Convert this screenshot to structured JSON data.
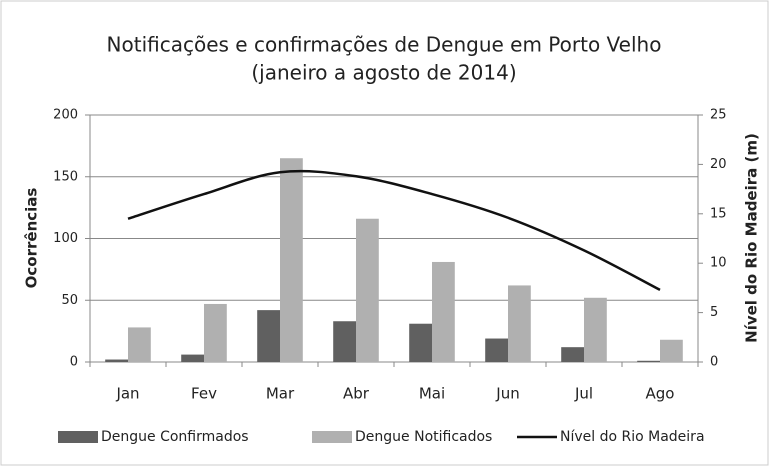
{
  "chart_data": {
    "type": "bar",
    "title": "Notificações e confirmações de Dengue em Porto Velho",
    "subtitle": "(janeiro a agosto de 2014)",
    "y_label": "Ocorrências",
    "y2_label": "Nível do Rio Madeira (m)",
    "categories": [
      "Jan",
      "Fev",
      "Mar",
      "Abr",
      "Mai",
      "Jun",
      "Jul",
      "Ago"
    ],
    "series": [
      {
        "name": "Dengue Confirmados",
        "color": "#606060",
        "type": "bar",
        "values": [
          2,
          6,
          42,
          33,
          31,
          19,
          12,
          1
        ]
      },
      {
        "name": "Dengue Notificados",
        "color": "#b0b0b0",
        "type": "bar",
        "values": [
          28,
          47,
          165,
          116,
          81,
          62,
          52,
          18
        ]
      },
      {
        "name": "Nível do Rio Madeira",
        "color": "#111111",
        "type": "line",
        "axis": "y2",
        "values": [
          14.5,
          17.0,
          19.2,
          18.8,
          17.0,
          14.6,
          11.3,
          7.3
        ]
      }
    ],
    "ylim": [
      0,
      200
    ],
    "yticks": [
      0,
      50,
      100,
      150,
      200
    ],
    "y2lim": [
      0,
      25
    ],
    "y2ticks": [
      0,
      5,
      10,
      15,
      20,
      25
    ],
    "grid": true,
    "legend": "bottom"
  }
}
